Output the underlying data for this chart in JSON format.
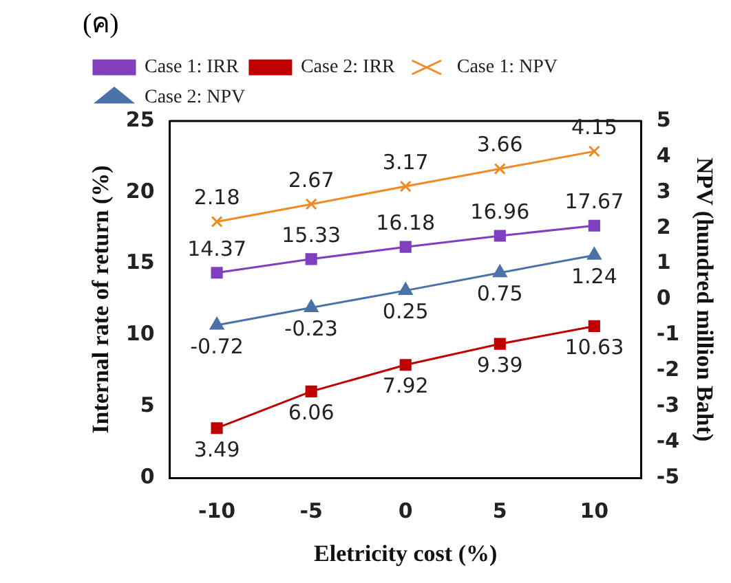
{
  "chart_data": {
    "type": "line",
    "title": "(ค)",
    "xlabel": "Eletricity cost (%)",
    "ylabel": "Internal rate of return (%)",
    "y2label": "NPV (hundred million Baht)",
    "categories": [
      "-10",
      "-5",
      "0",
      "5",
      "10"
    ],
    "series": [
      {
        "name": "Case 1: IRR",
        "color": "#7f3fbf",
        "marker": "square",
        "values": [
          14.37,
          15.33,
          16.18,
          16.96,
          17.67
        ]
      },
      {
        "name": "Case 2: IRR",
        "color": "#c00000",
        "marker": "square",
        "values": [
          3.49,
          6.06,
          7.92,
          9.39,
          10.63
        ]
      },
      {
        "name": "Case 1: NPV",
        "color": "#f08a24",
        "marker": "cross",
        "axis": "y2",
        "values": [
          2.18,
          2.67,
          3.17,
          3.66,
          4.15
        ]
      },
      {
        "name": "Case 2: NPV",
        "color": "#4a72a8",
        "marker": "triangle",
        "axis": "y2",
        "values": [
          -0.72,
          -0.23,
          0.25,
          0.75,
          1.24
        ]
      }
    ],
    "ylim": [
      0,
      25
    ],
    "yticks": [
      0,
      5,
      10,
      15,
      20,
      25
    ],
    "y2lim": [
      -5,
      5
    ],
    "y2ticks": [
      -5,
      -4,
      -3,
      -2,
      -1,
      0,
      1,
      2,
      3,
      4,
      5
    ],
    "grid": false,
    "legend": "top left",
    "data_labels": true
  }
}
